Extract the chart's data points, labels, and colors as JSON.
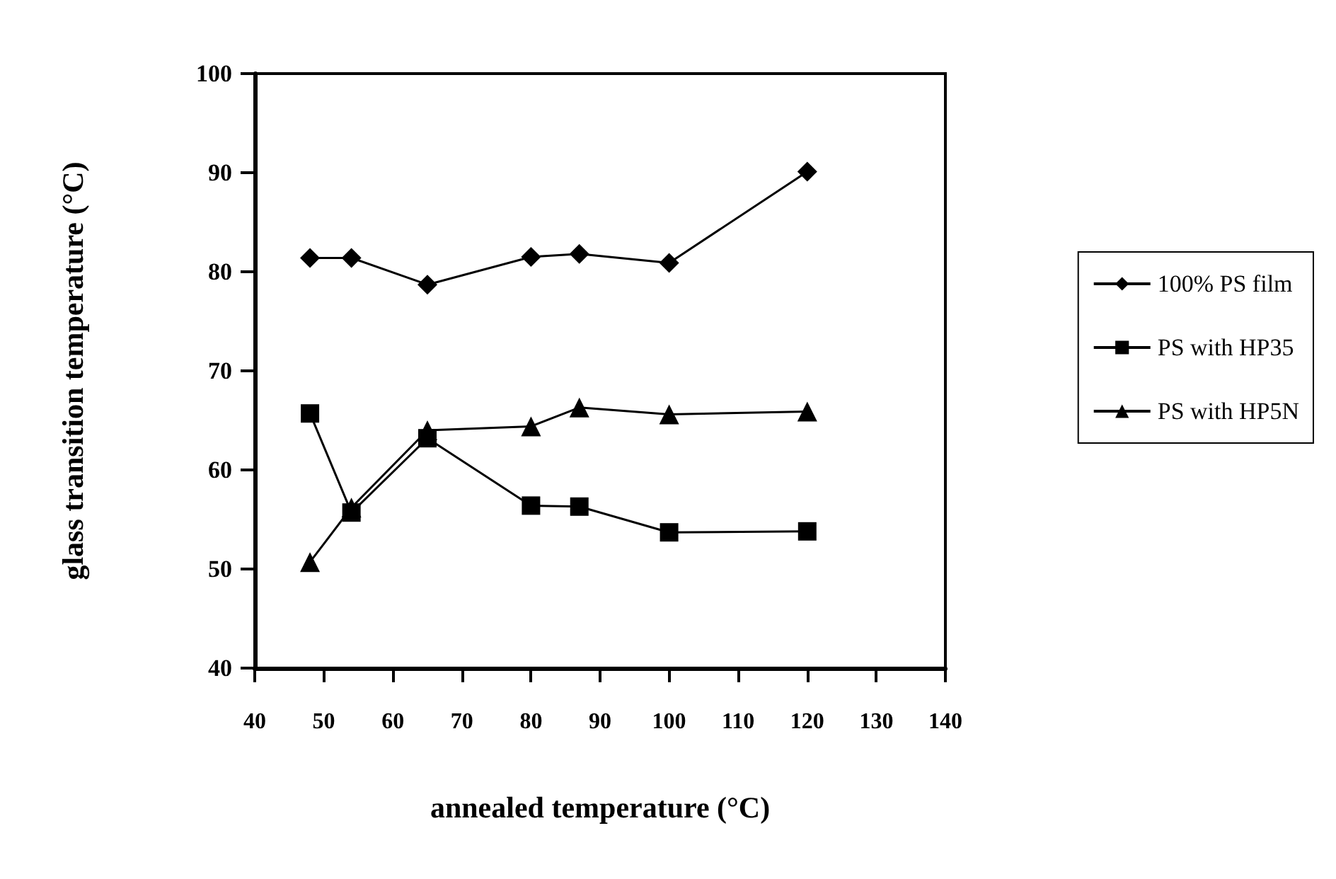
{
  "chart_data": {
    "type": "line",
    "xlabel": "annealed temperature (°C)",
    "ylabel": "glass transition temperature (°C)",
    "x": [
      48,
      54,
      65,
      80,
      87,
      100,
      120
    ],
    "series": [
      {
        "name": "100% PS film",
        "color": "#000000",
        "marker": "diamond",
        "values": [
          81.4,
          81.4,
          78.7,
          81.5,
          81.8,
          80.9,
          90.1
        ]
      },
      {
        "name": "PS with HP35",
        "color": "#000000",
        "marker": "square",
        "values": [
          65.7,
          55.7,
          63.2,
          56.4,
          56.3,
          53.7,
          53.8
        ]
      },
      {
        "name": "PS with HP5N",
        "color": "#000000",
        "marker": "triangle",
        "values": [
          50.7,
          56.2,
          64.0,
          64.4,
          66.3,
          65.6,
          65.9
        ]
      }
    ],
    "xlim": [
      40,
      140
    ],
    "xticks": [
      40,
      50,
      60,
      70,
      80,
      90,
      100,
      110,
      120,
      130,
      140
    ],
    "ylim": [
      40,
      100
    ],
    "yticks": [
      40,
      50,
      60,
      70,
      80,
      90,
      100
    ],
    "grid": false,
    "legend": "right",
    "line_style": "solid"
  }
}
